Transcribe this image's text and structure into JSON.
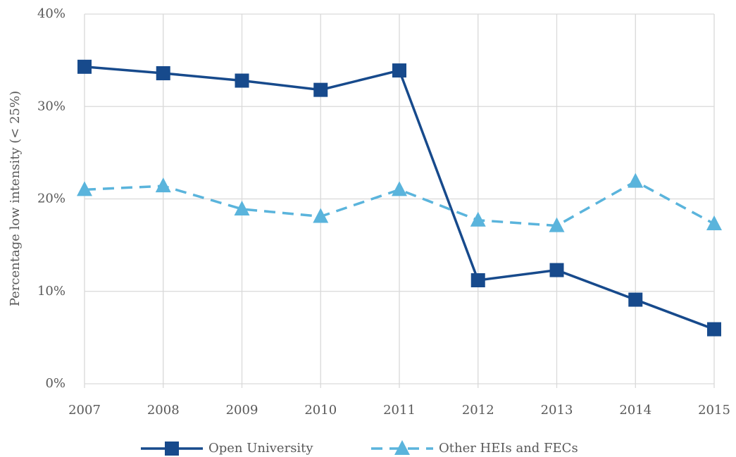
{
  "chart_data": {
    "type": "line",
    "y_label": "Percentage low intensity (< 25%)",
    "x": [
      2007,
      2008,
      2009,
      2010,
      2011,
      2012,
      2013,
      2014,
      2015
    ],
    "xlim": [
      2007,
      2015
    ],
    "xticks": [
      2007,
      2008,
      2009,
      2010,
      2011,
      2012,
      2013,
      2014,
      2015
    ],
    "ylim": [
      0,
      40
    ],
    "yticks": [
      {
        "value": 0,
        "label": "0%"
      },
      {
        "value": 10,
        "label": "10%"
      },
      {
        "value": 20,
        "label": "20%"
      },
      {
        "value": 30,
        "label": "30%"
      },
      {
        "value": 40,
        "label": "40%"
      }
    ],
    "grid": true,
    "legend": "bottom",
    "series": [
      {
        "name": "Open University",
        "color": "#174a8c",
        "marker": "square",
        "dashed": false,
        "values": [
          34.3,
          33.6,
          32.8,
          31.8,
          33.9,
          11.2,
          12.3,
          9.1,
          5.9
        ]
      },
      {
        "name": "Other HEIs and FECs",
        "color": "#5ab4dc",
        "marker": "triangle",
        "dashed": true,
        "values": [
          21.0,
          21.4,
          18.9,
          18.1,
          21.0,
          17.7,
          17.1,
          21.9,
          17.3
        ]
      }
    ]
  }
}
